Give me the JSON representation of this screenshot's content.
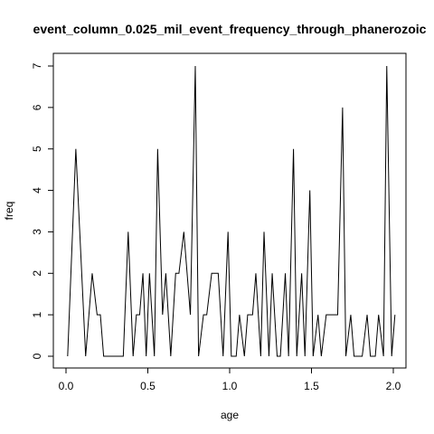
{
  "chart_data": {
    "type": "line",
    "title": "event_column_0.025_mil_event_frequency_through_phanerozoic",
    "xlabel": "age",
    "ylabel": "freq",
    "xlim": [
      0.0,
      2.0
    ],
    "ylim": [
      0,
      7
    ],
    "xticks": [
      0.0,
      0.5,
      1.0,
      1.5,
      2.0
    ],
    "xtick_labels": [
      "0.0",
      "0.5",
      "1.0",
      "1.5",
      "2.0"
    ],
    "yticks": [
      0,
      1,
      2,
      3,
      4,
      5,
      6,
      7
    ],
    "ytick_labels": [
      "0",
      "1",
      "2",
      "3",
      "4",
      "5",
      "6",
      "7"
    ],
    "grid": false,
    "legend": "none",
    "x": [
      0.01,
      0.06,
      0.12,
      0.16,
      0.19,
      0.21,
      0.23,
      0.26,
      0.29,
      0.32,
      0.35,
      0.38,
      0.41,
      0.43,
      0.45,
      0.47,
      0.49,
      0.51,
      0.54,
      0.56,
      0.59,
      0.61,
      0.64,
      0.67,
      0.69,
      0.72,
      0.76,
      0.79,
      0.81,
      0.84,
      0.86,
      0.89,
      0.93,
      0.96,
      0.99,
      1.01,
      1.04,
      1.06,
      1.09,
      1.11,
      1.14,
      1.16,
      1.19,
      1.21,
      1.24,
      1.26,
      1.29,
      1.31,
      1.34,
      1.36,
      1.39,
      1.41,
      1.44,
      1.46,
      1.49,
      1.51,
      1.54,
      1.56,
      1.59,
      1.61,
      1.64,
      1.66,
      1.69,
      1.71,
      1.74,
      1.76,
      1.79,
      1.81,
      1.84,
      1.86,
      1.89,
      1.91,
      1.94,
      1.96,
      1.99,
      2.01
    ],
    "y": [
      0,
      5,
      0,
      2,
      1,
      1,
      0,
      0,
      0,
      0,
      0,
      3,
      0,
      1,
      1,
      2,
      0,
      2,
      0,
      5,
      1,
      2,
      0,
      2,
      2,
      3,
      1,
      7,
      0,
      1,
      1,
      2,
      2,
      0,
      3,
      0,
      0,
      1,
      0,
      1,
      1,
      2,
      0,
      3,
      0,
      2,
      0,
      0,
      2,
      0,
      5,
      0,
      2,
      0,
      4,
      0,
      1,
      0,
      1,
      1,
      1,
      1,
      6,
      0,
      1,
      0,
      0,
      0,
      1,
      0,
      0,
      1,
      0,
      7,
      0,
      1
    ],
    "colors": {
      "line": "#000000",
      "axes": "#000000",
      "background": "#ffffff"
    }
  }
}
